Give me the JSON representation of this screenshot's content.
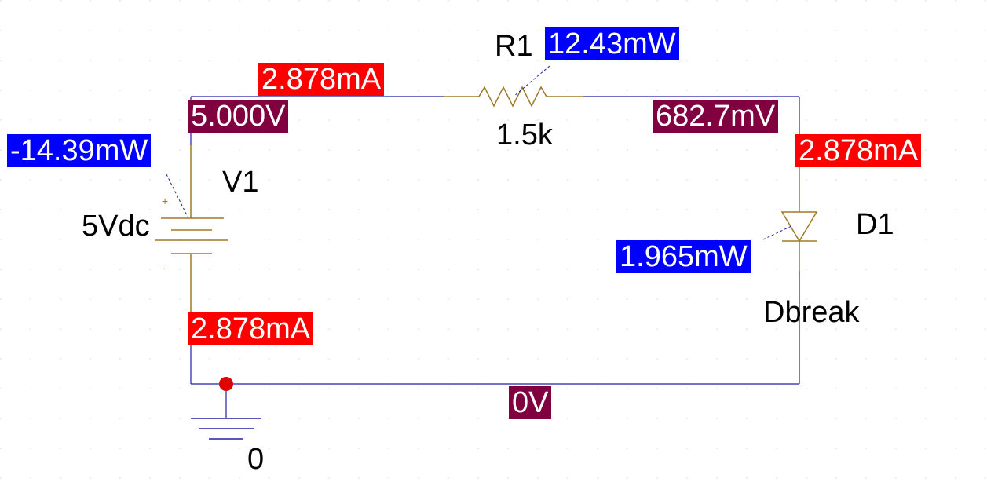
{
  "components": {
    "r1": {
      "ref": "R1",
      "value": "1.5k",
      "power": "12.43mW"
    },
    "v1": {
      "ref": "V1",
      "value": "5Vdc",
      "power": "-14.39mW",
      "plus": "+",
      "minus": "-"
    },
    "d1": {
      "ref": "D1",
      "model": "Dbreak",
      "power": "1.965mW"
    },
    "gnd": {
      "label": "0"
    }
  },
  "probes": {
    "top_left_current": "2.878mA",
    "top_left_voltage": "5.000V",
    "top_right_voltage": "682.7mV",
    "right_current": "2.878mA",
    "left_bottom_current": "2.878mA",
    "bottom_voltage": "0V"
  },
  "colors": {
    "wire": "#2020a0",
    "part": "#a07828",
    "current_tag": "#ff0000",
    "voltage_tag": "#800040",
    "power_tag": "#0000ff",
    "node_dot": "#e00000"
  }
}
